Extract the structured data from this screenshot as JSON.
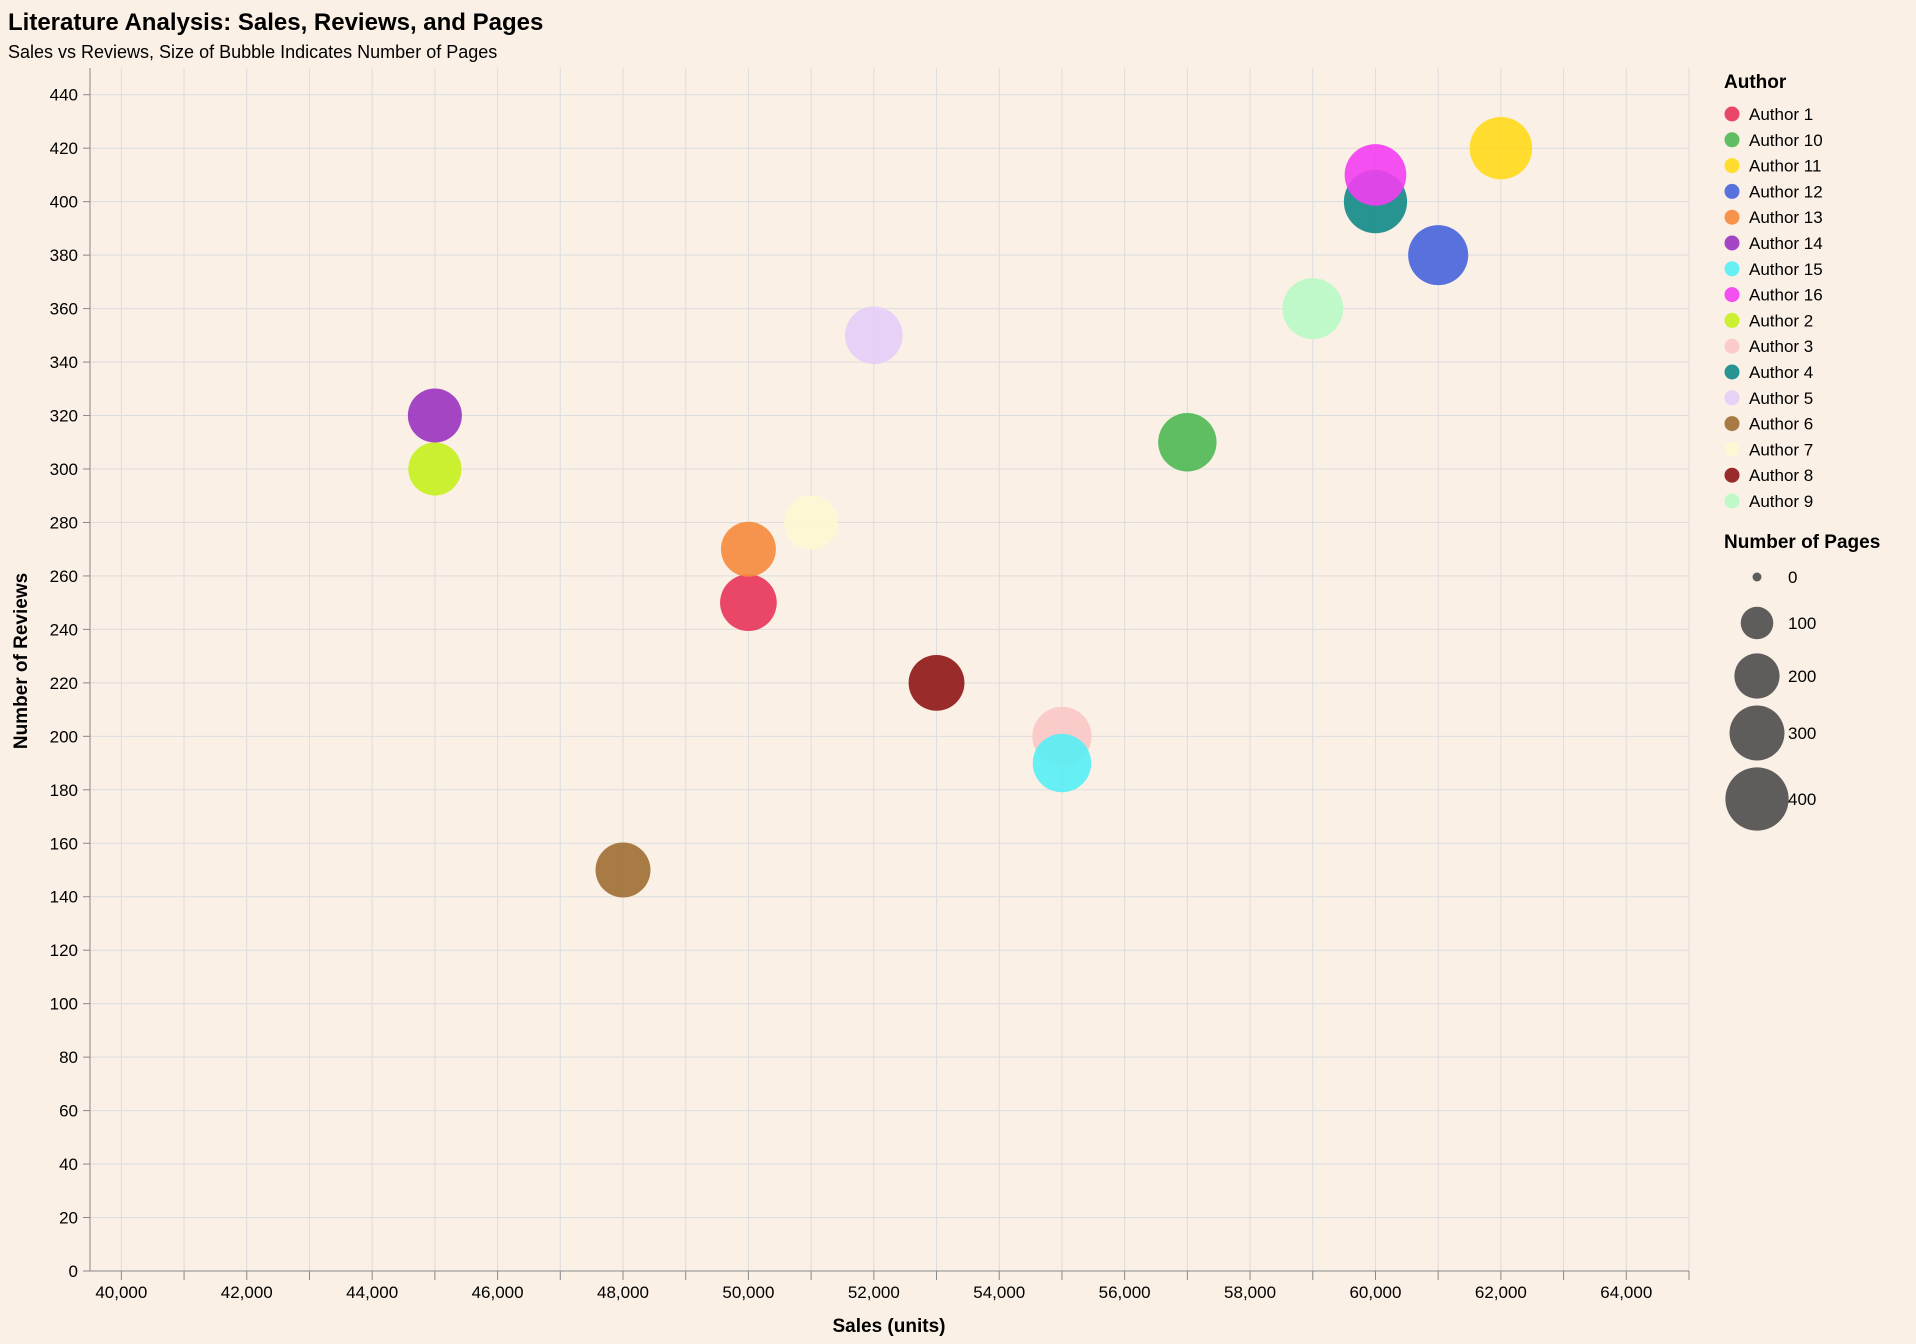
{
  "chart_data": {
    "type": "scatter",
    "title": "Literature Analysis: Sales, Reviews, and Pages",
    "subtitle": "Sales vs Reviews, Size of Bubble Indicates Number of Pages",
    "xlabel": "Sales (units)",
    "ylabel": "Number of Reviews",
    "xlim": [
      39500,
      65000
    ],
    "ylim": [
      0,
      450
    ],
    "x_ticks": [
      40000,
      42000,
      44000,
      46000,
      48000,
      50000,
      52000,
      54000,
      56000,
      58000,
      60000,
      62000,
      64000
    ],
    "y_ticks": [
      0,
      20,
      40,
      60,
      80,
      100,
      120,
      140,
      160,
      180,
      200,
      220,
      240,
      260,
      280,
      300,
      320,
      340,
      360,
      380,
      400,
      420,
      440
    ],
    "x_tick_labels": [
      "40,000",
      "42,000",
      "44,000",
      "46,000",
      "48,000",
      "50,000",
      "52,000",
      "54,000",
      "56,000",
      "58,000",
      "60,000",
      "62,000",
      "64,000"
    ],
    "grid": true,
    "legend_placement": "right",
    "color_legend_title": "Author",
    "size_legend_title": "Number of Pages",
    "size_legend_values": [
      0,
      100,
      200,
      300,
      400
    ],
    "size_legend_labels": [
      "0",
      "100",
      "200",
      "300",
      "400"
    ],
    "legend_order": [
      "Author 1",
      "Author 10",
      "Author 11",
      "Author 12",
      "Author 13",
      "Author 14",
      "Author 15",
      "Author 16",
      "Author 2",
      "Author 3",
      "Author 4",
      "Author 5",
      "Author 6",
      "Author 7",
      "Author 8",
      "Author 9"
    ],
    "colors": {
      "Author 1": "#e8345a",
      "Author 10": "#4cb852",
      "Author 11": "#ffd91a",
      "Author 12": "#4663dc",
      "Author 13": "#f58a3c",
      "Author 14": "#9a33c0",
      "Author 15": "#55eef5",
      "Author 16": "#f23df2",
      "Author 2": "#c5f01c",
      "Author 3": "#fbc6c6",
      "Author 4": "#118a87",
      "Author 5": "#e6cdf7",
      "Author 6": "#9f6e33",
      "Author 7": "#fdf8d2",
      "Author 8": "#8e1516",
      "Author 9": "#b9f9c5"
    },
    "points": [
      {
        "author": "Author 1",
        "sales": 50000,
        "reviews": 250,
        "pages": 320
      },
      {
        "author": "Author 2",
        "sales": 45000,
        "reviews": 300,
        "pages": 280
      },
      {
        "author": "Author 3",
        "sales": 55000,
        "reviews": 200,
        "pages": 350
      },
      {
        "author": "Author 4",
        "sales": 60000,
        "reviews": 400,
        "pages": 400
      },
      {
        "author": "Author 5",
        "sales": 52000,
        "reviews": 350,
        "pages": 330
      },
      {
        "author": "Author 6",
        "sales": 48000,
        "reviews": 150,
        "pages": 300
      },
      {
        "author": "Author 7",
        "sales": 51000,
        "reviews": 280,
        "pages": 290
      },
      {
        "author": "Author 8",
        "sales": 53000,
        "reviews": 220,
        "pages": 310
      },
      {
        "author": "Author 9",
        "sales": 59000,
        "reviews": 360,
        "pages": 370
      },
      {
        "author": "Author 10",
        "sales": 57000,
        "reviews": 310,
        "pages": 340
      },
      {
        "author": "Author 11",
        "sales": 62000,
        "reviews": 420,
        "pages": 390
      },
      {
        "author": "Author 12",
        "sales": 61000,
        "reviews": 380,
        "pages": 360
      },
      {
        "author": "Author 13",
        "sales": 50000,
        "reviews": 270,
        "pages": 300
      },
      {
        "author": "Author 14",
        "sales": 45000,
        "reviews": 320,
        "pages": 290
      },
      {
        "author": "Author 15",
        "sales": 55000,
        "reviews": 190,
        "pages": 340
      },
      {
        "author": "Author 16",
        "sales": 60000,
        "reviews": 410,
        "pages": 380
      }
    ]
  }
}
